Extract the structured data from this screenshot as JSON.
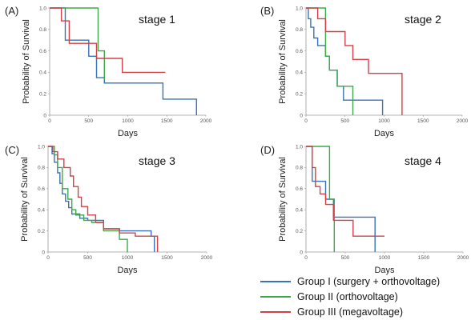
{
  "chart_data": [
    {
      "type": "line",
      "panel_letter": "(A)",
      "title": "stage 1",
      "xlabel": "Days",
      "ylabel": "Probability of Survival",
      "xlim": [
        0,
        2000
      ],
      "ylim": [
        0,
        1.0
      ],
      "x_ticks": [
        "0",
        "500",
        "1000",
        "1500",
        "2000"
      ],
      "y_ticks": [
        "0",
        "0.2",
        "0.4",
        "0.6",
        "0.8",
        "1.0"
      ],
      "series": [
        {
          "name": "Group I (surgery + orthovoltage)",
          "color": "#3a73b8",
          "x": [
            0,
            150,
            200,
            350,
            500,
            600,
            700,
            1200,
            1450,
            1880
          ],
          "y": [
            1.0,
            1.0,
            0.7,
            0.7,
            0.55,
            0.35,
            0.3,
            0.3,
            0.15,
            0.0
          ]
        },
        {
          "name": "Group II (orthovoltage)",
          "color": "#3daa4a",
          "x": [
            0,
            550,
            620,
            700
          ],
          "y": [
            1.0,
            1.0,
            0.6,
            0.33
          ]
        },
        {
          "name": "Group III (megavoltage)",
          "color": "#d2404a",
          "x": [
            0,
            150,
            250,
            500,
            600,
            930,
            1480
          ],
          "y": [
            1.0,
            0.88,
            0.67,
            0.67,
            0.53,
            0.4,
            0.4
          ]
        }
      ]
    },
    {
      "type": "line",
      "panel_letter": "(B)",
      "title": "stage 2",
      "xlabel": "Days",
      "ylabel": "Probability of Survival",
      "xlim": [
        0,
        2000
      ],
      "ylim": [
        0,
        1.0
      ],
      "x_ticks": [
        "0",
        "500",
        "1000",
        "1500",
        "2000"
      ],
      "y_ticks": [
        "0",
        "0.2",
        "0.4",
        "0.6",
        "0.8",
        "1.0"
      ],
      "series": [
        {
          "name": "Group I (surgery + orthovoltage)",
          "color": "#3a73b8",
          "x": [
            0,
            30,
            60,
            100,
            150,
            250,
            300,
            400,
            480,
            620,
            980
          ],
          "y": [
            1.0,
            0.9,
            0.82,
            0.72,
            0.65,
            0.55,
            0.42,
            0.27,
            0.14,
            0.14,
            0.0
          ]
        },
        {
          "name": "Group II (orthovoltage)",
          "color": "#3daa4a",
          "x": [
            0,
            200,
            250,
            300,
            400,
            600
          ],
          "y": [
            1.0,
            1.0,
            0.55,
            0.42,
            0.27,
            0.0
          ]
        },
        {
          "name": "Group III (megavoltage)",
          "color": "#d2404a",
          "x": [
            0,
            150,
            250,
            500,
            600,
            800,
            1230
          ],
          "y": [
            1.0,
            0.9,
            0.78,
            0.65,
            0.52,
            0.39,
            0.0
          ]
        }
      ]
    },
    {
      "type": "line",
      "panel_letter": "(C)",
      "title": "stage 3",
      "xlabel": "Days",
      "ylabel": "Probability of Survival",
      "xlim": [
        0,
        2000
      ],
      "ylim": [
        0,
        1.0
      ],
      "x_ticks": [
        "0",
        "500",
        "1000",
        "1500",
        "2000"
      ],
      "y_ticks": [
        "0",
        "0.2",
        "0.4",
        "0.6",
        "0.8",
        "1.0"
      ],
      "series": [
        {
          "name": "Group I (surgery + orthovoltage)",
          "color": "#3a73b8",
          "x": [
            0,
            50,
            80,
            120,
            150,
            180,
            220,
            260,
            300,
            400,
            500,
            700,
            900,
            1300,
            1340
          ],
          "y": [
            1.0,
            0.93,
            0.85,
            0.75,
            0.65,
            0.55,
            0.48,
            0.42,
            0.36,
            0.32,
            0.3,
            0.22,
            0.2,
            0.15,
            0.0
          ]
        },
        {
          "name": "Group II (orthovoltage)",
          "color": "#3daa4a",
          "x": [
            0,
            80,
            120,
            180,
            250,
            300,
            350,
            450,
            550,
            700,
            900,
            1000
          ],
          "y": [
            1.0,
            0.92,
            0.8,
            0.6,
            0.5,
            0.4,
            0.35,
            0.3,
            0.28,
            0.2,
            0.12,
            0.0
          ]
        },
        {
          "name": "Group III (megavoltage)",
          "color": "#d2404a",
          "x": [
            0,
            60,
            120,
            200,
            280,
            320,
            380,
            420,
            500,
            600,
            700,
            900,
            1100,
            1380
          ],
          "y": [
            1.0,
            0.95,
            0.88,
            0.8,
            0.72,
            0.62,
            0.52,
            0.43,
            0.35,
            0.28,
            0.22,
            0.18,
            0.15,
            0.0
          ]
        }
      ]
    },
    {
      "type": "line",
      "panel_letter": "(D)",
      "title": "stage 4",
      "xlabel": "Days",
      "ylabel": "Probability of Survival",
      "xlim": [
        0,
        2000
      ],
      "ylim": [
        0,
        1.0
      ],
      "x_ticks": [
        "0",
        "500",
        "1000",
        "1500",
        "2000"
      ],
      "y_ticks": [
        "0",
        "0.2",
        "0.4",
        "0.6",
        "0.8",
        "1.0"
      ],
      "series": [
        {
          "name": "Group I (surgery + orthovoltage)",
          "color": "#3a73b8",
          "x": [
            0,
            80,
            150,
            250,
            350,
            880
          ],
          "y": [
            1.0,
            0.67,
            0.67,
            0.5,
            0.33,
            0.0
          ]
        },
        {
          "name": "Group II (orthovoltage)",
          "color": "#3daa4a",
          "x": [
            0,
            260,
            300,
            360
          ],
          "y": [
            1.0,
            1.0,
            0.5,
            0.0
          ]
        },
        {
          "name": "Group III (megavoltage)",
          "color": "#d2404a",
          "x": [
            0,
            80,
            120,
            180,
            250,
            350,
            600,
            1000
          ],
          "y": [
            1.0,
            0.8,
            0.62,
            0.55,
            0.45,
            0.3,
            0.15,
            0.15
          ]
        }
      ]
    }
  ],
  "legend": {
    "items": [
      {
        "label": "Group I (surgery + orthovoltage)",
        "color": "#3a73b8"
      },
      {
        "label": "Group II (orthovoltage)",
        "color": "#3daa4a"
      },
      {
        "label": "Group III (megavoltage)",
        "color": "#d2404a"
      }
    ]
  }
}
